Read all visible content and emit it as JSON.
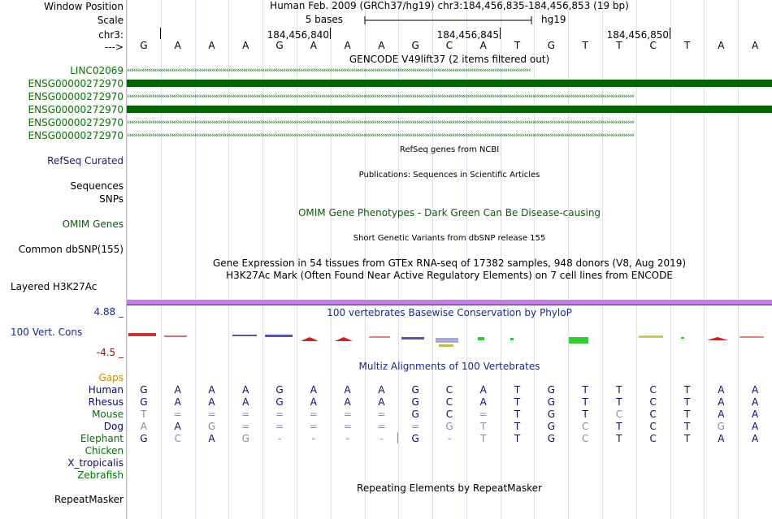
{
  "labels": {
    "window_position": "Window Position",
    "scale": "Scale",
    "chrom": "chr3:",
    "strand": "--->",
    "gencode_genes": [
      "LINC02069",
      "ENSG00000272970",
      "ENSG00000272970",
      "ENSG00000272970",
      "ENSG00000272970",
      "ENSG00000272970"
    ],
    "refseq_curated": "RefSeq Curated",
    "sequences": "Sequences",
    "snps": "SNPs",
    "omim_genes": "OMIM Genes",
    "common_dbsnp": "Common dbSNP(155)",
    "layered_h3k27ac": "Layered H3K27Ac",
    "phylop_max": "4.88 _",
    "vert_cons": "100 Vert. Cons",
    "phylop_min": "-4.5 _",
    "gaps": "Gaps",
    "species": [
      "Human",
      "Rhesus",
      "Mouse",
      "Dog",
      "Elephant",
      "Chicken",
      "X_tropicalis",
      "Zebrafish"
    ],
    "repeatmasker": "RepeatMasker"
  },
  "header": {
    "position_text": "Human Feb. 2009 (GRCh37/hg19)   chr3:184,456,835-184,456,853 (19 bp)",
    "scale_text": "5 bases",
    "assembly": "hg19",
    "coord_ticks": [
      "184,456,840",
      "184,456,845",
      "184,456,850"
    ]
  },
  "sequence": [
    "G",
    "A",
    "A",
    "A",
    "G",
    "A",
    "A",
    "A",
    "G",
    "C",
    "A",
    "T",
    "G",
    "T",
    "T",
    "C",
    "T",
    "A",
    "A"
  ],
  "tracks": {
    "gencode_title": "GENCODE V49lift37 (2 items filtered out)",
    "refseq_title": "RefSeq genes from NCBI",
    "publications_title": "Publications: Sequences in Scientific Articles",
    "omim_title": "OMIM Gene Phenotypes - Dark Green Can Be Disease-causing",
    "dbsnp_title": "Short Genetic Variants from dbSNP release 155",
    "gtex_title": "Gene Expression in 54 tissues from GTEx RNA-seq of 17382 samples, 948 donors (V8, Aug 2019)",
    "h3k27ac_title": "H3K27Ac Mark (Often Found Near Active Regulatory Elements) on 7 cell lines from ENCODE",
    "phylop_title": "100 vertebrates Basewise Conservation by PhyloP",
    "multiz_title": "Multiz Alignments of 100 Vertebrates",
    "repeatmasker_title": "Repeating Elements by RepeatMasker"
  },
  "alignment": {
    "Human": [
      "G",
      "A",
      "A",
      "A",
      "G",
      "A",
      "A",
      "A",
      "G",
      "C",
      "A",
      "T",
      "G",
      "T",
      "T",
      "C",
      "T",
      "A",
      "A"
    ],
    "Rhesus": [
      "G",
      "A",
      "A",
      "A",
      "G",
      "A",
      "A",
      "A",
      "G",
      "C",
      "A",
      "T",
      "G",
      "T",
      "T",
      "C",
      "T",
      "A",
      "A"
    ],
    "Mouse": [
      "T",
      "=",
      "=",
      "=",
      "=",
      "=",
      "=",
      "=",
      "G",
      "C",
      "=",
      "T",
      "G",
      "T",
      "C",
      "C",
      "T",
      "A",
      "A"
    ],
    "Dog": [
      "A",
      "A",
      "G",
      "=",
      "=",
      "=",
      "=",
      "=",
      "=",
      "G",
      "T",
      "T",
      "G",
      "C",
      "T",
      "C",
      "T",
      "G",
      "A"
    ],
    "Elephant": [
      "G",
      "C",
      "A",
      "G",
      "-",
      "-",
      "-",
      "-",
      "G",
      "-",
      "T",
      "T",
      "G",
      "C",
      "T",
      "C",
      "T",
      "A",
      "A"
    ]
  },
  "colors": {
    "gencode_green": "#006400",
    "label_green": "#0a6e0a",
    "navy": "#0a0a6e",
    "omim_green": "#0d5a0d",
    "h3k27ac_purple": "#c47ee6",
    "h3k27ac_base": "#8b1a1a",
    "phylop_navy": "#1a2a8a",
    "gaps_orange": "#d08a00"
  }
}
